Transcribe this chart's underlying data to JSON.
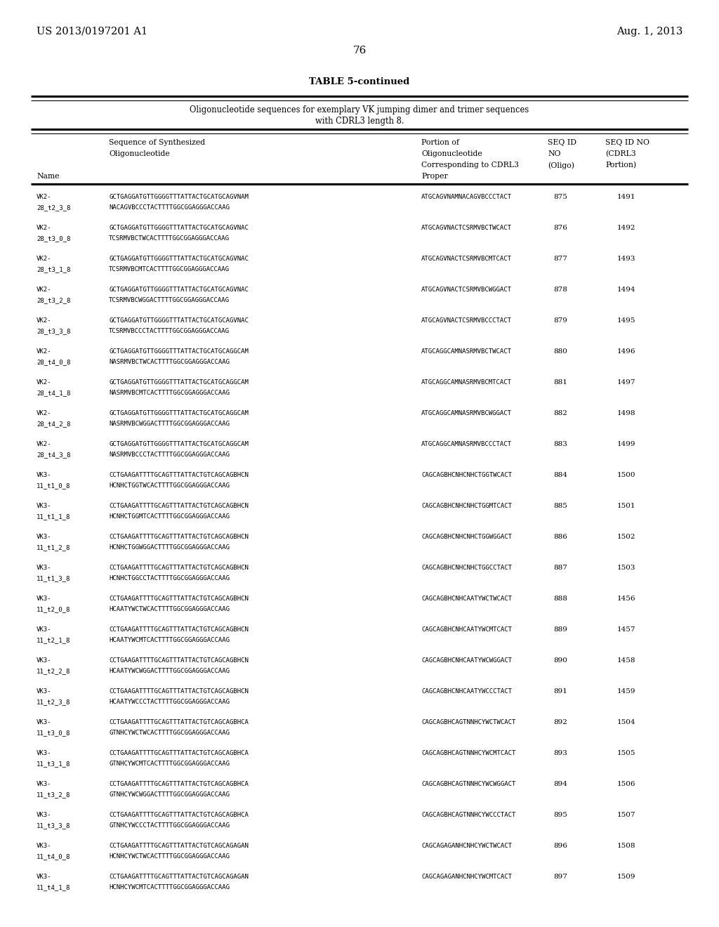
{
  "patent_number": "US 2013/0197201 A1",
  "date": "Aug. 1, 2013",
  "page_number": "76",
  "table_title": "TABLE 5-continued",
  "table_subtitle_line1": "Oligonucleotide sequences for exemplary VK jumping dimer and trimer sequences",
  "table_subtitle_line2": "with CDRL3 length 8.",
  "rows": [
    [
      "VK2-",
      "28_t2_3_8",
      "GCTGAGGATGTTGGGGTTTATTACTGCATGCAGVNAM",
      "NACAGVBCCCTACTTTTGGCGGAGGGACCAAG",
      "ATGCAGVNAMNACAGVBCCCTACT",
      "875",
      "1491"
    ],
    [
      "VK2-",
      "28_t3_0_8",
      "GCTGAGGATGTTGGGGTTTATTACTGCATGCAGVNAC",
      "TCSRMVBCTWCACTTTTGGCGGAGGGACCAAG",
      "ATGCAGVNACTCSRMVBCTWCACT",
      "876",
      "1492"
    ],
    [
      "VK2-",
      "28_t3_1_8",
      "GCTGAGGATGTTGGGGTTTATTACTGCATGCAGVNAC",
      "TCSRMVBCMTCACTTTTGGCGGAGGGACCAAG",
      "ATGCAGVNACTCSRMVBCMTCACT",
      "877",
      "1493"
    ],
    [
      "VK2-",
      "28_t3_2_8",
      "GCTGAGGATGTTGGGGTTTATTACTGCATGCAGVNAC",
      "TCSRMVBCWGGACTTTTGGCGGAGGGACCAAG",
      "ATGCAGVNACTCSRMVBCWGGACT",
      "878",
      "1494"
    ],
    [
      "VK2-",
      "28_t3_3_8",
      "GCTGAGGATGTTGGGGTTTATTACTGCATGCAGVNAC",
      "TCSRMVBCCCTACTTTTGGCGGAGGGACCAAG",
      "ATGCAGVNACTCSRMVBCCCTACT",
      "879",
      "1495"
    ],
    [
      "VK2-",
      "28_t4_0_8",
      "GCTGAGGATGTTGGGGTTTATTACTGCATGCAGGCAM",
      "NASRMVBCTWCACTTTTGGCGGAGGGACCAAG",
      "ATGCAGGCAMNASRMVBCTWCACT",
      "880",
      "1496"
    ],
    [
      "VK2-",
      "28_t4_1_8",
      "GCTGAGGATGTTGGGGTTTATTACTGCATGCAGGCAM",
      "NASRMVBCMTCACTTTTGGCGGAGGGACCAAG",
      "ATGCAGGCAMNASRMVBCMTCACT",
      "881",
      "1497"
    ],
    [
      "VK2-",
      "28_t4_2_8",
      "GCTGAGGATGTTGGGGTTTATTACTGCATGCAGGCAM",
      "NASRMVBCWGGACTTTTGGCGGAGGGACCAAG",
      "ATGCAGGCAMNASRMVBCWGGACT",
      "882",
      "1498"
    ],
    [
      "VK2-",
      "28_t4_3_8",
      "GCTGAGGATGTTGGGGTTTATTACTGCATGCAGGCAM",
      "NASRMVBCCCTACTTTTGGCGGAGGGACCAAG",
      "ATGCAGGCAMNASRMVBCCCTACT",
      "883",
      "1499"
    ],
    [
      "VK3-",
      "11_t1_0_8",
      "CCTGAAGATTTTGCAGTTTATTACTGTCAGCAGBHCN",
      "HCNHCTGGTWCACTTTTGGCGGAGGGACCAAG",
      "CAGCAGBHCNHCNHCTGGTWCACT",
      "884",
      "1500"
    ],
    [
      "VK3-",
      "11_t1_1_8",
      "CCTGAAGATTTTGCAGTTTATTACTGTCAGCAGBHCN",
      "HCNHCTGGMTCACTTTTGGCGGAGGGACCAAG",
      "CAGCAGBHCNHCNHCTGGMTCACT",
      "885",
      "1501"
    ],
    [
      "VK3-",
      "11_t1_2_8",
      "CCTGAAGATTTTGCAGTTTATTACTGTCAGCAGBHCN",
      "HCNHCTGGWGGACTTTTGGCGGAGGGACCAAG",
      "CAGCAGBHCNHCNHCTGGWGGACT",
      "886",
      "1502"
    ],
    [
      "VK3-",
      "11_t1_3_8",
      "CCTGAAGATTTTGCAGTTTATTACTGTCAGCAGBHCN",
      "HCNHCTGGCCTACTTTTGGCGGAGGGACCAAG",
      "CAGCAGBHCNHCNHCTGGCCTACT",
      "887",
      "1503"
    ],
    [
      "VK3-",
      "11_t2_0_8",
      "CCTGAAGATTTTGCAGTTTATTACTGTCAGCAGBHCN",
      "HCAATYWCTWCACTTTTGGCGGAGGGACCAAG",
      "CAGCAGBHCNHCAATYWCTWCACT",
      "888",
      "1456"
    ],
    [
      "VK3-",
      "11_t2_1_8",
      "CCTGAAGATTTTGCAGTTTATTACTGTCAGCAGBHCN",
      "HCAATYWCMTCACTTTTGGCGGAGGGACCAAG",
      "CAGCAGBHCNHCAATYWCMTCACT",
      "889",
      "1457"
    ],
    [
      "VK3-",
      "11_t2_2_8",
      "CCTGAAGATTTTGCAGTTTATTACTGTCAGCAGBHCN",
      "HCAATYWCWGGACTTTTGGCGGAGGGACCAAG",
      "CAGCAGBHCNHCAATYWCWGGACT",
      "890",
      "1458"
    ],
    [
      "VK3-",
      "11_t2_3_8",
      "CCTGAAGATTTTGCAGTTTATTACTGTCAGCAGBHCN",
      "HCAATYWCCCTACTTTTGGCGGAGGGACCAAG",
      "CAGCAGBHCNHCAATYWCCCTACT",
      "891",
      "1459"
    ],
    [
      "VK3-",
      "11_t3_0_8",
      "CCTGAAGATTTTGCAGTTTATTACTGTCAGCAGBHCA",
      "GTNHCYWCTWCACTTTTGGCGGAGGGACCAAG",
      "CAGCAGBHCAGTNNHCYWCTWCACT",
      "892",
      "1504"
    ],
    [
      "VK3-",
      "11_t3_1_8",
      "CCTGAAGATTTTGCAGTTTATTACTGTCAGCAGBHCA",
      "GTNHCYWCMTCACTTTTGGCGGAGGGACCAAG",
      "CAGCAGBHCAGTNNHCYWCMTCACT",
      "893",
      "1505"
    ],
    [
      "VK3-",
      "11_t3_2_8",
      "CCTGAAGATTTTGCAGTTTATTACTGTCAGCAGBHCA",
      "GTNHCYWCWGGACTTTTGGCGGAGGGACCAAG",
      "CAGCAGBHCAGTNNHCYWCWGGACT",
      "894",
      "1506"
    ],
    [
      "VK3-",
      "11_t3_3_8",
      "CCTGAAGATTTTGCAGTTTATTACTGTCAGCAGBHCA",
      "GTNHCYWCCCTACTTTTGGCGGAGGGACCAAG",
      "CAGCAGBHCAGTNNHCYWCCCTACT",
      "895",
      "1507"
    ],
    [
      "VK3-",
      "11_t4_0_8",
      "CCTGAAGATTTTGCAGTTTATTACTGTCAGCAGAGAN",
      "HCNHCYWCTWCACTTTTGGCGGAGGGACCAAG",
      "CAGCAGAGANHCNHCYWCTWCACT",
      "896",
      "1508"
    ],
    [
      "VK3-",
      "11_t4_1_8",
      "CCTGAAGATTTTGCAGTTTATTACTGTCAGCAGAGAN",
      "HCNHCYWCMTCACTTTTGGCGGAGGGACCAAG",
      "CAGCAGAGANHCNHCYWCMTCACT",
      "897",
      "1509"
    ]
  ],
  "bg_color": "#ffffff",
  "text_color": "#000000"
}
